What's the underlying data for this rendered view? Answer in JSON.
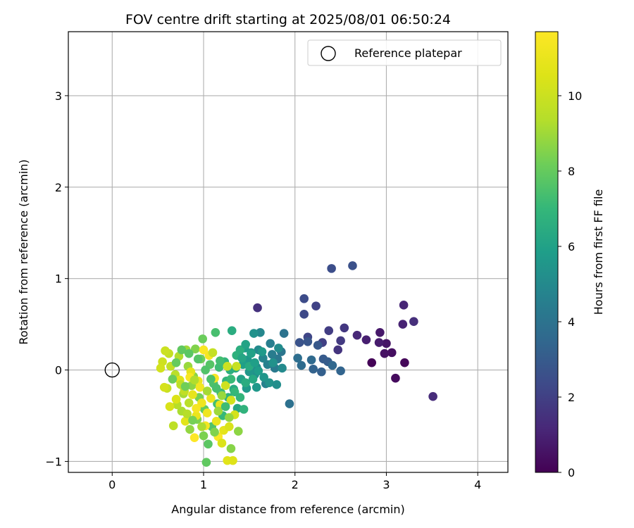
{
  "chart_data": {
    "type": "scatter",
    "title": "FOV centre drift starting at 2025/08/01 06:50:24",
    "xlabel": "Angular distance from reference (arcmin)",
    "ylabel": "Rotation from reference (arcmin)",
    "xlim": [
      -0.48,
      4.33
    ],
    "ylim": [
      -1.12,
      3.7
    ],
    "x_ticks": [
      0,
      1,
      2,
      3,
      4
    ],
    "x_tick_labels": [
      "0",
      "1",
      "2",
      "3",
      "4"
    ],
    "y_ticks": [
      -1,
      0,
      1,
      2,
      3
    ],
    "y_tick_labels": [
      "−1",
      "0",
      "1",
      "2",
      "3"
    ],
    "grid": true,
    "legend": {
      "location": "upper right",
      "entries": [
        "Reference platepar"
      ]
    },
    "colorbar": {
      "label": "Hours from first FF file",
      "colormap": "viridis",
      "range": [
        0,
        11.7
      ],
      "ticks": [
        0,
        2,
        4,
        6,
        8,
        10
      ],
      "tick_labels": [
        "0",
        "2",
        "4",
        "6",
        "8",
        "10"
      ]
    },
    "reference_point": {
      "name": "Reference platepar",
      "x": 0,
      "y": 0,
      "marker": "open-circle"
    },
    "series": [
      {
        "points": [
          [
            2.84,
            0.08,
            0.1
          ],
          [
            3.2,
            0.08,
            0.2
          ],
          [
            3.1,
            -0.09,
            0.3
          ],
          [
            3.06,
            0.19,
            0.4
          ],
          [
            2.98,
            0.18,
            0.5
          ],
          [
            3.0,
            0.29,
            0.6
          ],
          [
            2.93,
            0.41,
            0.7
          ],
          [
            2.92,
            0.3,
            0.8
          ],
          [
            2.78,
            0.33,
            0.9
          ],
          [
            3.18,
            0.5,
            1.0
          ],
          [
            3.19,
            0.71,
            1.1
          ],
          [
            2.68,
            0.38,
            1.2
          ],
          [
            3.51,
            -0.29,
            1.3
          ],
          [
            3.3,
            0.53,
            1.4
          ],
          [
            1.59,
            0.68,
            1.5
          ],
          [
            2.47,
            0.22,
            1.6
          ],
          [
            2.54,
            0.46,
            1.7
          ],
          [
            2.5,
            0.32,
            1.8
          ],
          [
            2.37,
            0.43,
            1.9
          ],
          [
            2.3,
            0.3,
            2.0
          ],
          [
            2.23,
            0.7,
            2.1
          ],
          [
            2.14,
            0.36,
            2.2
          ],
          [
            2.1,
            0.61,
            2.3
          ],
          [
            2.1,
            0.78,
            2.4
          ],
          [
            2.4,
            1.11,
            2.5
          ],
          [
            2.63,
            1.14,
            2.6
          ],
          [
            2.05,
            0.3,
            2.7
          ],
          [
            2.14,
            0.31,
            2.8
          ],
          [
            2.25,
            0.27,
            2.9
          ],
          [
            2.31,
            0.12,
            3.0
          ],
          [
            2.36,
            0.09,
            3.1
          ],
          [
            2.29,
            -0.02,
            3.2
          ],
          [
            2.2,
            0.01,
            3.3
          ],
          [
            2.5,
            -0.01,
            3.4
          ],
          [
            2.41,
            0.05,
            3.5
          ],
          [
            2.18,
            0.11,
            3.6
          ],
          [
            2.07,
            0.05,
            3.7
          ],
          [
            2.03,
            0.13,
            3.8
          ],
          [
            1.94,
            -0.37,
            3.9
          ],
          [
            1.88,
            0.4,
            4.0
          ],
          [
            1.85,
            0.2,
            4.1
          ],
          [
            1.81,
            0.12,
            4.2
          ],
          [
            1.78,
            0.02,
            4.3
          ],
          [
            1.75,
            0.17,
            4.4
          ],
          [
            1.73,
            0.29,
            4.5
          ],
          [
            1.7,
            0.06,
            4.6
          ],
          [
            1.68,
            -0.15,
            4.7
          ],
          [
            1.65,
            0.13,
            4.8
          ],
          [
            1.62,
            0.41,
            4.9
          ],
          [
            1.6,
            0.22,
            5.0
          ],
          [
            1.58,
            0.03,
            5.1
          ],
          [
            1.56,
            -0.05,
            5.2
          ],
          [
            1.55,
            0.4,
            5.3
          ],
          [
            1.52,
            0.19,
            5.4
          ],
          [
            1.5,
            -0.02,
            5.5
          ],
          [
            1.48,
            0.11,
            5.6
          ],
          [
            1.47,
            -0.2,
            5.7
          ],
          [
            1.45,
            0.24,
            5.8
          ],
          [
            1.43,
            0.06,
            5.9
          ],
          [
            1.41,
            -0.1,
            6.0
          ],
          [
            1.39,
            0.16,
            6.1
          ],
          [
            1.37,
            -0.42,
            6.2
          ],
          [
            1.35,
            0.02,
            6.3
          ],
          [
            1.33,
            -0.21,
            6.4
          ],
          [
            1.31,
            0.43,
            6.5
          ],
          [
            1.29,
            0.0,
            6.6
          ],
          [
            1.27,
            -0.3,
            6.7
          ],
          [
            1.25,
            -0.12,
            6.8
          ],
          [
            1.23,
            0.09,
            6.9
          ],
          [
            1.21,
            -0.5,
            7.0
          ],
          [
            1.19,
            -0.25,
            7.1
          ],
          [
            1.17,
            0.03,
            7.2
          ],
          [
            1.15,
            -0.37,
            7.3
          ],
          [
            1.13,
            0.41,
            7.4
          ],
          [
            1.11,
            -0.15,
            7.5
          ],
          [
            1.09,
            -0.62,
            7.6
          ],
          [
            1.07,
            0.06,
            7.7
          ],
          [
            1.05,
            -0.81,
            7.8
          ],
          [
            1.03,
            -1.01,
            7.9
          ],
          [
            1.01,
            -0.43,
            8.0
          ],
          [
            0.99,
            0.34,
            8.1
          ],
          [
            0.97,
            0.12,
            8.2
          ],
          [
            0.95,
            -0.3,
            8.3
          ],
          [
            0.93,
            -0.54,
            8.4
          ],
          [
            0.91,
            0.23,
            8.5
          ],
          [
            0.89,
            -0.07,
            8.6
          ],
          [
            0.87,
            -0.17,
            8.7
          ],
          [
            0.85,
            -0.65,
            8.8
          ],
          [
            0.83,
            0.04,
            8.9
          ],
          [
            0.81,
            0.22,
            9.0
          ],
          [
            0.78,
            -0.26,
            9.1
          ],
          [
            0.76,
            -0.45,
            9.2
          ],
          [
            0.73,
            0.15,
            9.3
          ],
          [
            0.71,
            -0.38,
            9.4
          ],
          [
            0.69,
            -0.05,
            9.5
          ],
          [
            0.67,
            -0.61,
            9.6
          ],
          [
            0.64,
            0.04,
            9.7
          ],
          [
            0.62,
            0.18,
            9.8
          ],
          [
            0.6,
            -0.2,
            9.9
          ],
          [
            0.58,
            0.21,
            10.0
          ],
          [
            0.55,
            0.09,
            10.1
          ],
          [
            0.53,
            0.02,
            10.2
          ],
          [
            0.57,
            -0.19,
            10.3
          ],
          [
            0.63,
            -0.4,
            10.4
          ],
          [
            0.7,
            -0.32,
            10.5
          ],
          [
            0.74,
            -0.11,
            10.6
          ],
          [
            0.8,
            -0.56,
            10.7
          ],
          [
            0.86,
            -0.02,
            10.8
          ],
          [
            0.88,
            -0.27,
            10.9
          ],
          [
            0.92,
            -0.5,
            11.0
          ],
          [
            0.94,
            -0.12,
            11.1
          ],
          [
            0.98,
            -0.36,
            11.2
          ],
          [
            1.02,
            -0.61,
            11.3
          ],
          [
            1.06,
            0.16,
            11.4
          ],
          [
            1.12,
            -0.09,
            11.5
          ],
          [
            1.16,
            -0.73,
            11.6
          ],
          [
            0.9,
            -0.74,
            11.7
          ],
          [
            1.0,
            0.22,
            11.6
          ],
          [
            0.85,
            -0.08,
            11.5
          ],
          [
            0.92,
            -0.42,
            11.4
          ],
          [
            0.96,
            -0.19,
            11.3
          ],
          [
            1.04,
            -0.47,
            11.2
          ],
          [
            1.08,
            -0.31,
            11.1
          ],
          [
            1.14,
            -0.56,
            11.0
          ],
          [
            1.18,
            -0.38,
            10.9
          ],
          [
            1.22,
            -0.66,
            10.8
          ],
          [
            1.26,
            -0.99,
            10.7
          ],
          [
            1.32,
            -0.99,
            10.6
          ],
          [
            1.2,
            -0.8,
            10.5
          ],
          [
            1.28,
            -0.62,
            10.4
          ],
          [
            1.34,
            -0.49,
            10.3
          ],
          [
            1.3,
            -0.33,
            10.2
          ],
          [
            1.24,
            -0.17,
            10.1
          ],
          [
            1.26,
            0.04,
            10.0
          ],
          [
            1.36,
            0.04,
            9.9
          ],
          [
            1.1,
            0.19,
            9.8
          ],
          [
            0.79,
            -0.23,
            9.7
          ],
          [
            0.75,
            -0.16,
            9.6
          ],
          [
            0.84,
            -0.36,
            9.5
          ],
          [
            0.82,
            -0.48,
            9.4
          ],
          [
            0.9,
            -0.11,
            9.3
          ],
          [
            0.98,
            -0.62,
            9.2
          ],
          [
            1.04,
            -0.23,
            9.1
          ],
          [
            1.16,
            -0.45,
            9.0
          ],
          [
            1.2,
            -0.28,
            8.9
          ],
          [
            1.28,
            -0.52,
            8.8
          ],
          [
            1.38,
            -0.67,
            8.7
          ],
          [
            1.3,
            -0.86,
            8.6
          ],
          [
            1.12,
            -0.68,
            8.5
          ],
          [
            1.0,
            -0.72,
            8.4
          ],
          [
            0.88,
            -0.55,
            8.3
          ],
          [
            0.8,
            -0.18,
            8.2
          ],
          [
            0.66,
            -0.1,
            8.1
          ],
          [
            0.7,
            0.08,
            8.0
          ],
          [
            0.76,
            0.22,
            7.9
          ],
          [
            0.84,
            0.18,
            7.8
          ],
          [
            0.94,
            0.12,
            7.7
          ],
          [
            1.02,
            0.0,
            7.6
          ],
          [
            1.08,
            -0.1,
            7.5
          ],
          [
            1.14,
            -0.2,
            7.4
          ],
          [
            1.18,
            0.1,
            7.3
          ],
          [
            1.24,
            -0.4,
            7.2
          ],
          [
            1.3,
            -0.1,
            7.1
          ],
          [
            1.34,
            -0.24,
            7.0
          ],
          [
            1.4,
            -0.3,
            6.9
          ],
          [
            1.44,
            -0.43,
            6.8
          ],
          [
            1.36,
            0.16,
            6.7
          ],
          [
            1.4,
            0.22,
            6.6
          ],
          [
            1.46,
            -0.14,
            6.5
          ],
          [
            1.5,
            0.04,
            6.4
          ],
          [
            1.54,
            -0.1,
            6.3
          ],
          [
            1.42,
            0.13,
            6.2
          ],
          [
            1.46,
            0.28,
            6.1
          ],
          [
            1.52,
            0.18,
            6.0
          ],
          [
            1.56,
            0.08,
            5.9
          ],
          [
            1.6,
            -0.01,
            5.8
          ],
          [
            1.64,
            0.2,
            5.7
          ],
          [
            1.58,
            -0.19,
            5.6
          ],
          [
            1.66,
            -0.08,
            5.5
          ],
          [
            1.72,
            -0.14,
            5.4
          ],
          [
            1.76,
            0.08,
            5.3
          ],
          [
            1.8,
            -0.16,
            5.2
          ],
          [
            1.82,
            0.24,
            5.1
          ],
          [
            1.86,
            0.02,
            5.0
          ]
        ]
      }
    ]
  }
}
